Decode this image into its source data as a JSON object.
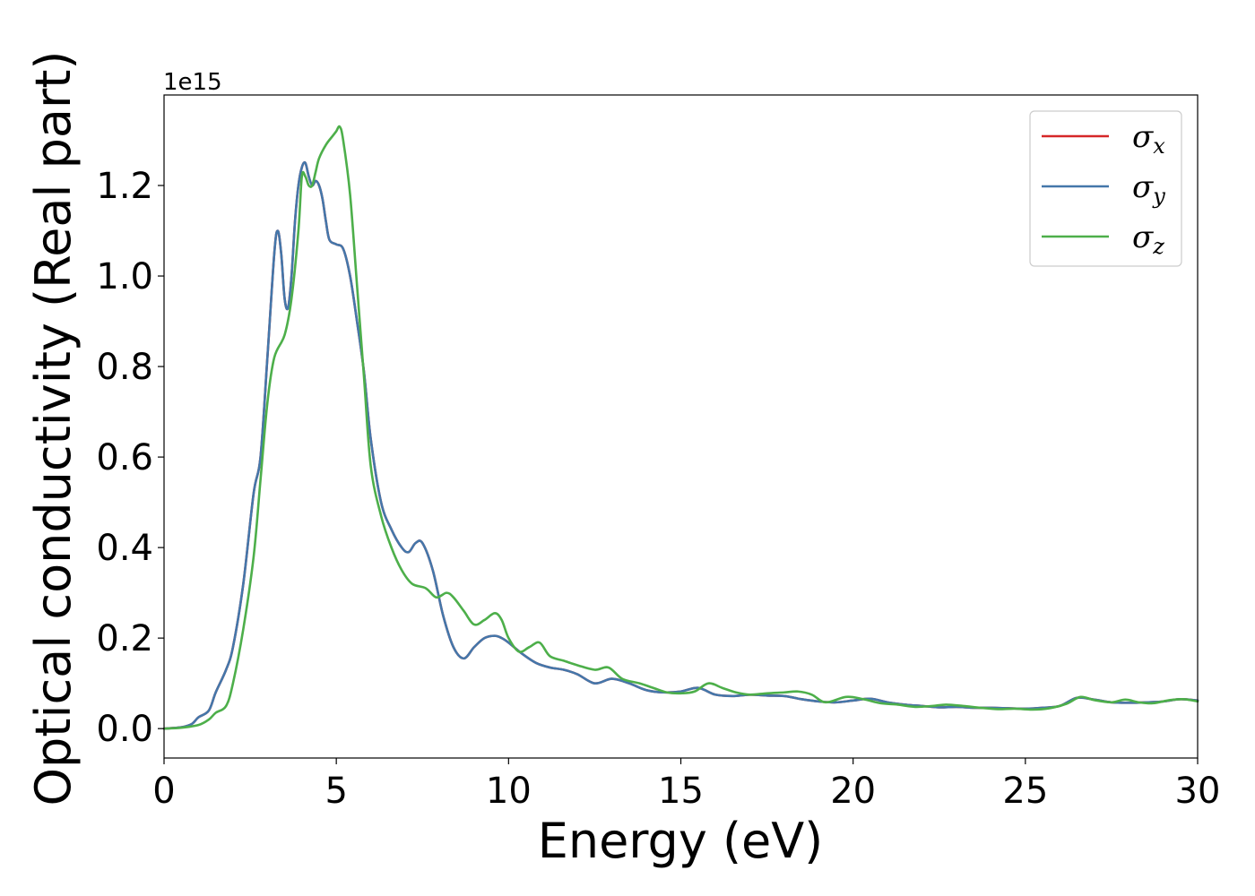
{
  "chart_data": {
    "type": "line",
    "xlabel": "Energy (eV)",
    "ylabel": "Optical conductivity (Real part)",
    "y_offset_label": "1e15",
    "y_scale_factor": 1000000000000000.0,
    "xlim": [
      0,
      30
    ],
    "ylim": [
      -0.065,
      1.4
    ],
    "x_ticks": [
      0,
      5,
      10,
      15,
      20,
      25,
      30
    ],
    "x_tick_labels": [
      "0",
      "5",
      "10",
      "15",
      "20",
      "25",
      "30"
    ],
    "y_ticks": [
      0.0,
      0.2,
      0.4,
      0.6,
      0.8,
      1.0,
      1.2
    ],
    "y_tick_labels": [
      "0.0",
      "0.2",
      "0.4",
      "0.6",
      "0.8",
      "1.0",
      "1.2"
    ],
    "grid": false,
    "legend_position": "top-right",
    "series": [
      {
        "name": "σx",
        "legend_base": "σ",
        "legend_sub": "x",
        "color": "#d62728",
        "x": [
          0,
          0.5,
          0.8,
          1.0,
          1.3,
          1.5,
          1.8,
          2.0,
          2.3,
          2.6,
          2.8,
          3.0,
          3.2,
          3.3,
          3.4,
          3.5,
          3.6,
          3.7,
          3.8,
          3.9,
          4.0,
          4.1,
          4.2,
          4.3,
          4.4,
          4.5,
          4.6,
          4.7,
          4.8,
          5.0,
          5.2,
          5.4,
          5.6,
          5.8,
          6.0,
          6.3,
          6.6,
          6.9,
          7.1,
          7.3,
          7.5,
          7.8,
          8.1,
          8.4,
          8.7,
          9.0,
          9.3,
          9.6,
          9.8,
          10.0,
          10.4,
          10.8,
          11.2,
          11.6,
          12.0,
          12.5,
          13.0,
          13.5,
          14.0,
          14.5,
          15.0,
          15.5,
          16.0,
          16.5,
          17.0,
          17.5,
          18.0,
          18.5,
          19.0,
          19.5,
          20.0,
          20.5,
          21.0,
          21.5,
          22.0,
          22.5,
          23.0,
          23.5,
          24.0,
          24.5,
          25.0,
          25.5,
          26.0,
          26.5,
          27.0,
          27.5,
          28.0,
          28.5,
          29.0,
          29.5,
          30.0
        ],
        "y": [
          0.0,
          0.003,
          0.01,
          0.025,
          0.04,
          0.08,
          0.13,
          0.18,
          0.32,
          0.52,
          0.6,
          0.82,
          1.05,
          1.1,
          1.05,
          0.95,
          0.93,
          1.0,
          1.12,
          1.2,
          1.24,
          1.25,
          1.22,
          1.2,
          1.21,
          1.2,
          1.17,
          1.12,
          1.08,
          1.07,
          1.06,
          1.0,
          0.9,
          0.79,
          0.64,
          0.5,
          0.44,
          0.4,
          0.39,
          0.41,
          0.41,
          0.35,
          0.25,
          0.18,
          0.155,
          0.18,
          0.2,
          0.205,
          0.2,
          0.19,
          0.165,
          0.145,
          0.135,
          0.13,
          0.12,
          0.1,
          0.11,
          0.1,
          0.085,
          0.08,
          0.082,
          0.09,
          0.075,
          0.072,
          0.075,
          0.073,
          0.072,
          0.065,
          0.06,
          0.058,
          0.062,
          0.066,
          0.058,
          0.053,
          0.05,
          0.047,
          0.048,
          0.046,
          0.046,
          0.045,
          0.044,
          0.046,
          0.05,
          0.068,
          0.064,
          0.058,
          0.057,
          0.058,
          0.06,
          0.065,
          0.062
        ]
      },
      {
        "name": "σy",
        "legend_base": "σ",
        "legend_sub": "y",
        "color": "#4477aa",
        "x": [
          0,
          0.5,
          0.8,
          1.0,
          1.3,
          1.5,
          1.8,
          2.0,
          2.3,
          2.6,
          2.8,
          3.0,
          3.2,
          3.3,
          3.4,
          3.5,
          3.6,
          3.7,
          3.8,
          3.9,
          4.0,
          4.1,
          4.2,
          4.3,
          4.4,
          4.5,
          4.6,
          4.7,
          4.8,
          5.0,
          5.2,
          5.4,
          5.6,
          5.8,
          6.0,
          6.3,
          6.6,
          6.9,
          7.1,
          7.3,
          7.5,
          7.8,
          8.1,
          8.4,
          8.7,
          9.0,
          9.3,
          9.6,
          9.8,
          10.0,
          10.4,
          10.8,
          11.2,
          11.6,
          12.0,
          12.5,
          13.0,
          13.5,
          14.0,
          14.5,
          15.0,
          15.5,
          16.0,
          16.5,
          17.0,
          17.5,
          18.0,
          18.5,
          19.0,
          19.5,
          20.0,
          20.5,
          21.0,
          21.5,
          22.0,
          22.5,
          23.0,
          23.5,
          24.0,
          24.5,
          25.0,
          25.5,
          26.0,
          26.5,
          27.0,
          27.5,
          28.0,
          28.5,
          29.0,
          29.5,
          30.0
        ],
        "y": [
          0.0,
          0.003,
          0.01,
          0.025,
          0.04,
          0.08,
          0.13,
          0.18,
          0.32,
          0.52,
          0.6,
          0.82,
          1.05,
          1.1,
          1.05,
          0.95,
          0.93,
          1.0,
          1.12,
          1.2,
          1.24,
          1.25,
          1.22,
          1.2,
          1.21,
          1.2,
          1.17,
          1.12,
          1.08,
          1.07,
          1.06,
          1.0,
          0.9,
          0.79,
          0.64,
          0.5,
          0.44,
          0.4,
          0.39,
          0.41,
          0.41,
          0.35,
          0.25,
          0.18,
          0.155,
          0.18,
          0.2,
          0.205,
          0.2,
          0.19,
          0.165,
          0.145,
          0.135,
          0.13,
          0.12,
          0.1,
          0.11,
          0.1,
          0.085,
          0.08,
          0.082,
          0.09,
          0.075,
          0.072,
          0.075,
          0.073,
          0.072,
          0.065,
          0.06,
          0.058,
          0.062,
          0.066,
          0.058,
          0.053,
          0.05,
          0.047,
          0.048,
          0.046,
          0.046,
          0.045,
          0.044,
          0.046,
          0.05,
          0.068,
          0.064,
          0.058,
          0.057,
          0.058,
          0.06,
          0.065,
          0.062
        ]
      },
      {
        "name": "σz",
        "legend_base": "σ",
        "legend_sub": "z",
        "color": "#4daf4a",
        "x": [
          0,
          0.5,
          1.0,
          1.3,
          1.5,
          1.8,
          2.0,
          2.3,
          2.6,
          2.8,
          3.0,
          3.2,
          3.5,
          3.7,
          3.9,
          4.0,
          4.1,
          4.2,
          4.3,
          4.4,
          4.5,
          4.7,
          4.9,
          5.0,
          5.1,
          5.2,
          5.4,
          5.6,
          5.8,
          6.0,
          6.3,
          6.6,
          6.9,
          7.2,
          7.6,
          7.9,
          8.2,
          8.4,
          8.7,
          9.0,
          9.3,
          9.6,
          9.8,
          10.0,
          10.3,
          10.6,
          10.9,
          11.2,
          11.6,
          12.0,
          12.5,
          12.9,
          13.3,
          13.8,
          14.2,
          14.6,
          15.0,
          15.4,
          15.8,
          16.2,
          16.6,
          17.0,
          17.5,
          18.0,
          18.4,
          18.8,
          19.2,
          19.8,
          20.3,
          20.8,
          21.3,
          21.8,
          22.3,
          22.7,
          23.2,
          23.7,
          24.2,
          24.7,
          25.2,
          25.7,
          26.2,
          26.6,
          27.0,
          27.5,
          27.9,
          28.3,
          28.7,
          29.2,
          29.6,
          30.0
        ],
        "y": [
          0.0,
          0.002,
          0.008,
          0.02,
          0.035,
          0.05,
          0.1,
          0.22,
          0.38,
          0.55,
          0.72,
          0.82,
          0.87,
          0.95,
          1.1,
          1.22,
          1.22,
          1.2,
          1.2,
          1.23,
          1.26,
          1.29,
          1.31,
          1.32,
          1.33,
          1.3,
          1.18,
          0.98,
          0.78,
          0.58,
          0.47,
          0.4,
          0.35,
          0.32,
          0.31,
          0.29,
          0.3,
          0.29,
          0.26,
          0.23,
          0.24,
          0.255,
          0.24,
          0.2,
          0.17,
          0.18,
          0.19,
          0.16,
          0.15,
          0.14,
          0.13,
          0.135,
          0.11,
          0.1,
          0.09,
          0.08,
          0.078,
          0.082,
          0.1,
          0.09,
          0.08,
          0.075,
          0.078,
          0.08,
          0.082,
          0.075,
          0.058,
          0.07,
          0.065,
          0.056,
          0.053,
          0.048,
          0.05,
          0.053,
          0.05,
          0.046,
          0.043,
          0.044,
          0.042,
          0.045,
          0.055,
          0.07,
          0.063,
          0.058,
          0.064,
          0.058,
          0.056,
          0.063,
          0.065,
          0.06
        ]
      }
    ]
  }
}
